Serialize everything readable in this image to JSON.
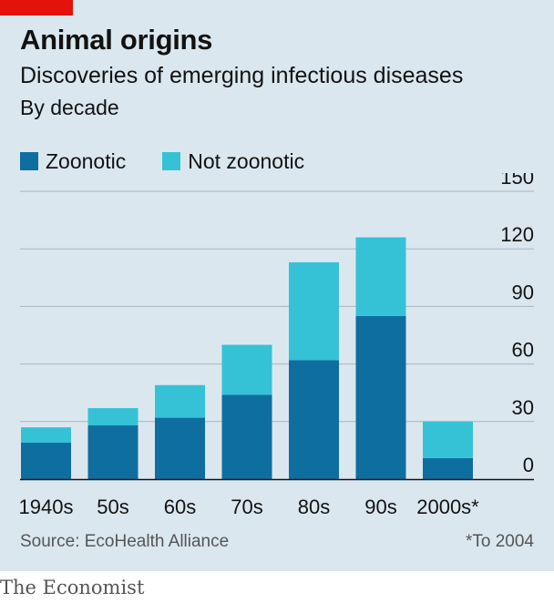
{
  "header": {
    "title": "Animal origins",
    "subtitle": "Discoveries of emerging infectious diseases",
    "note": "By decade"
  },
  "colors": {
    "zoonotic": "#0f6ea0",
    "not_zoonotic": "#36c2d6",
    "accent": "#e3120b",
    "grid": "#a9b6bf"
  },
  "legend": {
    "zoonotic": "Zoonotic",
    "not_zoonotic": "Not zoonotic"
  },
  "chart_data": {
    "type": "bar",
    "stacked": true,
    "categories": [
      "1940s",
      "50s",
      "60s",
      "70s",
      "80s",
      "90s",
      "2000s*"
    ],
    "series": [
      {
        "name": "Zoonotic",
        "values": [
          19,
          28,
          32,
          44,
          62,
          85,
          11
        ]
      },
      {
        "name": "Not zoonotic",
        "values": [
          8,
          9,
          17,
          26,
          51,
          41,
          19
        ]
      }
    ],
    "ylim": [
      0,
      150
    ],
    "yticks": [
      0,
      30,
      60,
      90,
      120,
      150
    ],
    "y_axis_side": "right",
    "grid": true
  },
  "footer": {
    "source": "Source: EcoHealth Alliance",
    "footnote": "*To 2004",
    "brand": "The Economist"
  }
}
